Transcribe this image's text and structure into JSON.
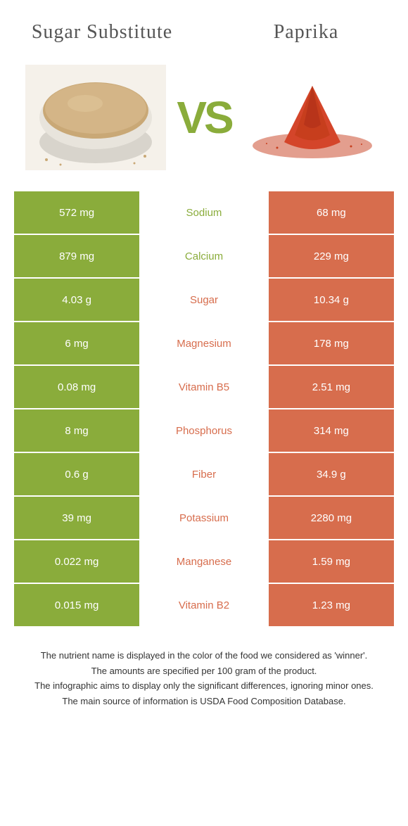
{
  "colors": {
    "left": "#8aac3b",
    "right": "#d76d4d",
    "vs": "#8aac3b",
    "title": "#555555",
    "footer_text": "#333333",
    "row_separator": "#ffffff"
  },
  "typography": {
    "title_fontsize": 28,
    "vs_fontsize": 64,
    "cell_fontsize": 15,
    "footer_fontsize": 13
  },
  "header": {
    "left_title": "Sugar Substitute",
    "right_title": "Paprika",
    "vs_text": "VS"
  },
  "images": {
    "left_alt": "sugar-substitute-photo",
    "right_alt": "paprika-photo"
  },
  "nutrients": [
    {
      "name": "Sodium",
      "left": "572 mg",
      "right": "68 mg",
      "winner": "left"
    },
    {
      "name": "Calcium",
      "left": "879 mg",
      "right": "229 mg",
      "winner": "left"
    },
    {
      "name": "Sugar",
      "left": "4.03 g",
      "right": "10.34 g",
      "winner": "right"
    },
    {
      "name": "Magnesium",
      "left": "6 mg",
      "right": "178 mg",
      "winner": "right"
    },
    {
      "name": "Vitamin B5",
      "left": "0.08 mg",
      "right": "2.51 mg",
      "winner": "right"
    },
    {
      "name": "Phosphorus",
      "left": "8 mg",
      "right": "314 mg",
      "winner": "right"
    },
    {
      "name": "Fiber",
      "left": "0.6 g",
      "right": "34.9 g",
      "winner": "right"
    },
    {
      "name": "Potassium",
      "left": "39 mg",
      "right": "2280 mg",
      "winner": "right"
    },
    {
      "name": "Manganese",
      "left": "0.022 mg",
      "right": "1.59 mg",
      "winner": "right"
    },
    {
      "name": "Vitamin B2",
      "left": "0.015 mg",
      "right": "1.23 mg",
      "winner": "right"
    }
  ],
  "footer": {
    "line1": "The nutrient name is displayed in the color of the food we considered as 'winner'.",
    "line2": "The amounts are specified per 100 gram of the product.",
    "line3": "The infographic aims to display only the significant differences, ignoring minor ones.",
    "line4": "The main source of information is USDA Food Composition Database."
  }
}
